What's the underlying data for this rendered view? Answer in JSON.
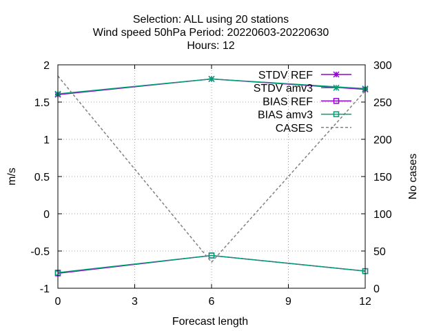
{
  "titles": [
    "Selection: ALL using    20 stations",
    "Wind speed 50hPa   Period: 20220603-20220630",
    "Hours:  12"
  ],
  "chart_data": {
    "type": "line",
    "title": "Selection: ALL using    20 stations / Wind speed 50hPa   Period: 20220603-20220630 / Hours:  12",
    "xlabel": "Forecast length",
    "ylabel": "m/s",
    "y2label": "No cases",
    "xlim": [
      0,
      12
    ],
    "ylim": [
      -1,
      2
    ],
    "y2lim": [
      0,
      300
    ],
    "xticks": [
      "0",
      "3",
      "6",
      "9",
      "12"
    ],
    "yticks": [
      "-1",
      "-0.5",
      "0",
      "0.5",
      "1",
      "1.5",
      "2"
    ],
    "y2ticks": [
      "0",
      "50",
      "100",
      "150",
      "200",
      "250",
      "300"
    ],
    "grid": true,
    "legend_position": "top-right",
    "series": [
      {
        "name": "STDV REF",
        "axis": "y",
        "color": "#9400d3",
        "marker": "star",
        "dash": "",
        "x": [
          0,
          6,
          12
        ],
        "y": [
          1.6,
          1.81,
          1.67
        ]
      },
      {
        "name": "STDV amv3",
        "axis": "y",
        "color": "#009e73",
        "marker": "star",
        "dash": "",
        "x": [
          0,
          6,
          12
        ],
        "y": [
          1.61,
          1.81,
          1.68
        ]
      },
      {
        "name": "BIAS REF",
        "axis": "y",
        "color": "#9400d3",
        "marker": "square",
        "dash": "",
        "x": [
          0,
          6,
          12
        ],
        "y": [
          -0.8,
          -0.56,
          -0.77
        ]
      },
      {
        "name": "BIAS amv3",
        "axis": "y",
        "color": "#009e73",
        "marker": "square",
        "dash": "",
        "x": [
          0,
          6,
          12
        ],
        "y": [
          -0.79,
          -0.56,
          -0.77
        ]
      },
      {
        "name": "CASES",
        "axis": "y2",
        "color": "#808080",
        "marker": "none",
        "dash": "4 3",
        "x": [
          0,
          6,
          12
        ],
        "y": [
          285,
          35,
          265
        ]
      }
    ]
  }
}
